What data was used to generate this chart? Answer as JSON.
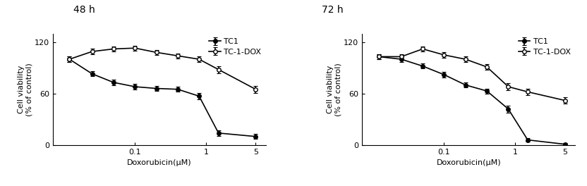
{
  "panel1": {
    "title": "48 h",
    "xlabel": "Doxorubicin(μM)",
    "ylabel": "Cell viability\n(% of control)",
    "x_values": [
      0.012,
      0.025,
      0.05,
      0.1,
      0.2,
      0.4,
      0.8,
      1.5,
      5.0
    ],
    "tc1_y": [
      100,
      83,
      73,
      68,
      66,
      65,
      57,
      14,
      10
    ],
    "tc1_err": [
      3,
      3,
      3,
      3,
      3,
      3,
      4,
      3,
      3
    ],
    "dox_y": [
      100,
      109,
      112,
      113,
      108,
      104,
      100,
      88,
      65
    ],
    "dox_err": [
      3,
      3,
      3,
      3,
      3,
      3,
      3,
      4,
      4
    ]
  },
  "panel2": {
    "title": "72 h",
    "xlabel": "Doxorubicin(μM)",
    "ylabel": "Cell viability\n(% of control)",
    "x_values": [
      0.012,
      0.025,
      0.05,
      0.1,
      0.2,
      0.4,
      0.8,
      1.5,
      5.0
    ],
    "tc1_y": [
      103,
      100,
      92,
      82,
      70,
      63,
      42,
      6,
      1
    ],
    "tc1_err": [
      3,
      3,
      3,
      3,
      3,
      3,
      4,
      2,
      1
    ],
    "dox_y": [
      103,
      103,
      112,
      105,
      100,
      91,
      68,
      62,
      52
    ],
    "dox_err": [
      3,
      3,
      3,
      3,
      3,
      3,
      4,
      4,
      4
    ]
  },
  "xtick_labels": [
    "0.1",
    "1",
    "5"
  ],
  "xtick_positions": [
    0.1,
    1.0,
    5.0
  ],
  "xlim": [
    0.007,
    7.0
  ],
  "ylim": [
    0,
    130
  ],
  "yticks": [
    0,
    60,
    120
  ],
  "line_color": "#000000",
  "legend_tc1": "TC1",
  "legend_dox": "TC-1-DOX",
  "title_fontsize": 10,
  "label_fontsize": 8,
  "tick_fontsize": 8,
  "legend_fontsize": 8,
  "linewidth": 1.2,
  "markersize": 4
}
